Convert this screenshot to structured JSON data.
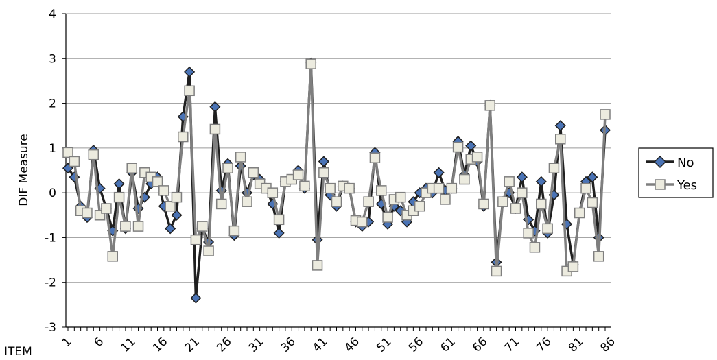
{
  "chart_data": {
    "type": "line",
    "title": "",
    "ylabel": "DIF Measure",
    "xlabel": "ITEM",
    "ylim": [
      -3,
      4
    ],
    "yticks": [
      -3,
      -2,
      -1,
      0,
      1,
      2,
      3,
      4
    ],
    "x_tick_labels": [
      "1",
      "6",
      "11",
      "16",
      "21",
      "26",
      "31",
      "36",
      "41",
      "46",
      "51",
      "56",
      "61",
      "66",
      "71",
      "76",
      "81",
      "86"
    ],
    "grid": "horizontal",
    "legend_position": "right",
    "series": [
      {
        "name": "No",
        "color": "#1f1f1f",
        "marker_color": "#4a73b5",
        "marker": "diamond",
        "values": [
          0.55,
          0.35,
          -0.3,
          -0.55,
          0.95,
          0.1,
          -0.35,
          -0.85,
          0.2,
          -0.8,
          0.45,
          -0.35,
          -0.1,
          0.2,
          0.35,
          -0.3,
          -0.8,
          -0.5,
          1.7,
          2.7,
          -2.35,
          -0.8,
          -1.1,
          1.92,
          0.05,
          0.65,
          -0.95,
          0.6,
          0.0,
          0.4,
          0.3,
          0.1,
          -0.25,
          -0.9,
          0.25,
          0.3,
          0.5,
          0.1,
          2.9,
          -1.05,
          0.7,
          -0.05,
          -0.3,
          0.15,
          0.1,
          -0.65,
          -0.75,
          -0.65,
          0.9,
          -0.25,
          -0.7,
          -0.3,
          -0.4,
          -0.65,
          -0.2,
          0.0,
          0.1,
          0.0,
          0.45,
          0.05,
          0.1,
          1.15,
          0.4,
          1.05,
          0.7,
          -0.3,
          1.95,
          -1.55,
          -0.2,
          0.0,
          -0.35,
          0.35,
          -0.6,
          -0.85,
          0.25,
          -0.9,
          -0.05,
          1.5,
          -0.7,
          -1.6,
          -0.45,
          0.25,
          0.35,
          -1.0,
          1.4
        ]
      },
      {
        "name": "Yes",
        "color": "#7f7f7f",
        "marker_color": "#ecebdf",
        "marker": "square",
        "values": [
          0.9,
          0.7,
          -0.4,
          -0.45,
          0.85,
          -0.5,
          -0.35,
          -1.42,
          -0.1,
          -0.75,
          0.55,
          -0.75,
          0.45,
          0.35,
          0.25,
          0.05,
          -0.3,
          -0.1,
          1.25,
          2.28,
          -1.05,
          -0.75,
          -1.3,
          1.42,
          -0.25,
          0.55,
          -0.85,
          0.8,
          -0.2,
          0.45,
          0.2,
          0.1,
          0.0,
          -0.6,
          0.25,
          0.3,
          0.4,
          0.15,
          2.88,
          -1.62,
          0.45,
          0.1,
          -0.2,
          0.15,
          0.1,
          -0.62,
          -0.65,
          -0.2,
          0.78,
          0.05,
          -0.55,
          -0.15,
          -0.1,
          -0.5,
          -0.4,
          -0.3,
          0.0,
          0.1,
          0.1,
          -0.15,
          0.1,
          1.02,
          0.3,
          0.75,
          0.8,
          -0.25,
          1.95,
          -1.75,
          -0.2,
          0.25,
          -0.35,
          0.0,
          -0.9,
          -1.22,
          -0.25,
          -0.8,
          0.55,
          1.2,
          -1.75,
          -1.65,
          -0.45,
          0.1,
          -0.22,
          -1.42,
          1.75
        ]
      }
    ]
  }
}
